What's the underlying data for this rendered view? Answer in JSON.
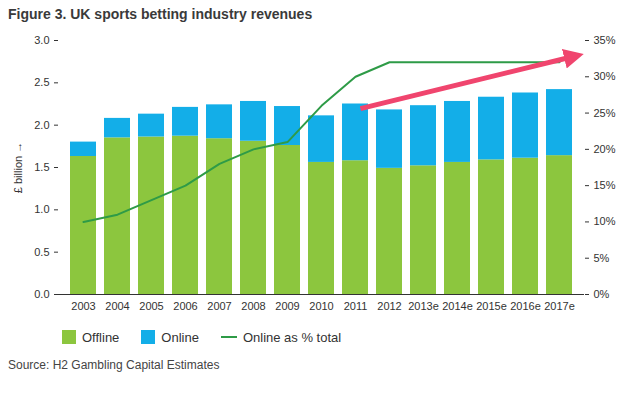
{
  "chart_data": {
    "type": "bar",
    "title": "Figure 3. UK sports betting industry revenues",
    "source": "Source: H2 Gambling Capital Estimates",
    "ylabel": "£ billion",
    "stacked": true,
    "grid": false,
    "categories": [
      "2003",
      "2004",
      "2005",
      "2006",
      "2007",
      "2008",
      "2009",
      "2010",
      "2011",
      "2012",
      "2013e",
      "2014e",
      "2015e",
      "2016e",
      "2017e"
    ],
    "series": [
      {
        "name": "Offline",
        "color": "#8cc63e",
        "values": [
          1.63,
          1.85,
          1.86,
          1.87,
          1.84,
          1.81,
          1.76,
          1.56,
          1.58,
          1.49,
          1.52,
          1.56,
          1.59,
          1.61,
          1.64
        ]
      },
      {
        "name": "Online",
        "color": "#13aee8",
        "values": [
          0.17,
          0.23,
          0.27,
          0.34,
          0.4,
          0.47,
          0.46,
          0.55,
          0.67,
          0.69,
          0.71,
          0.72,
          0.74,
          0.77,
          0.78
        ]
      },
      {
        "name": "Online as % total",
        "type": "line",
        "axis": "y2",
        "color": "#2e9b47",
        "values": [
          10,
          11,
          13,
          15,
          18,
          20,
          21,
          26,
          30,
          32,
          32,
          32,
          32,
          32,
          32
        ]
      }
    ],
    "ylim": [
      0,
      3
    ],
    "yticks": [
      {
        "value": 0,
        "label": "0.0"
      },
      {
        "value": 0.5,
        "label": "0.5"
      },
      {
        "value": 1,
        "label": "1.0"
      },
      {
        "value": 1.5,
        "label": "1.5"
      },
      {
        "value": 2,
        "label": "2.0"
      },
      {
        "value": 2.5,
        "label": "2.5"
      },
      {
        "value": 3,
        "label": "3.0"
      }
    ],
    "y2lim": [
      0,
      35
    ],
    "y2ticks": [
      {
        "value": 0,
        "label": "0%"
      },
      {
        "value": 5,
        "label": "5%"
      },
      {
        "value": 10,
        "label": "10%"
      },
      {
        "value": 15,
        "label": "15%"
      },
      {
        "value": 20,
        "label": "20%"
      },
      {
        "value": 25,
        "label": "25%"
      },
      {
        "value": 30,
        "label": "30%"
      },
      {
        "value": 35,
        "label": "35%"
      }
    ]
  }
}
